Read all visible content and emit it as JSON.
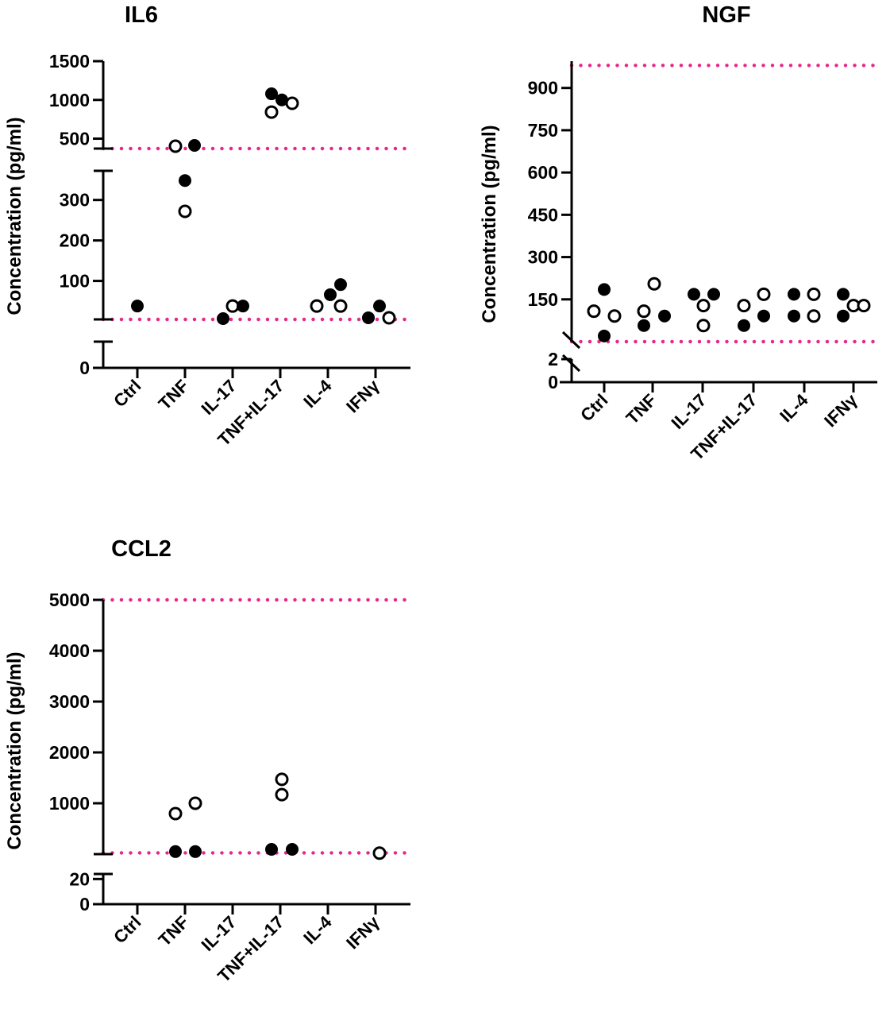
{
  "colors": {
    "reference_line": "#e8278c",
    "marker": "#000000"
  },
  "chart_data": [
    {
      "type": "scatter",
      "title": "IL6",
      "ylabel": "Concentration (pg/ml)",
      "xlabel": "",
      "categories": [
        "Ctrl",
        "TNF",
        "IL-17",
        "TNF+IL-17",
        "IL-4",
        "IFNγ"
      ],
      "y_axis_segments": [
        {
          "range": [
            0,
            5
          ],
          "ticks": [
            0
          ]
        },
        {
          "range": [
            5,
            372
          ],
          "ticks": [
            100,
            200,
            300
          ]
        },
        {
          "range": [
            372,
            1500
          ],
          "ticks": [
            500,
            1000,
            1500
          ]
        }
      ],
      "reference_lines": [
        5,
        372
      ],
      "points": [
        {
          "category": "Ctrl",
          "value": 38,
          "marker": "filled"
        },
        {
          "category": "TNF",
          "value": 403,
          "marker": "open"
        },
        {
          "category": "TNF",
          "value": 413,
          "marker": "filled"
        },
        {
          "category": "TNF",
          "value": 348,
          "marker": "filled"
        },
        {
          "category": "TNF",
          "value": 272,
          "marker": "open"
        },
        {
          "category": "IL-17",
          "value": 7,
          "marker": "filled"
        },
        {
          "category": "IL-17",
          "value": 38,
          "marker": "open"
        },
        {
          "category": "IL-17",
          "value": 38,
          "marker": "filled"
        },
        {
          "category": "TNF+IL-17",
          "value": 1079,
          "marker": "filled"
        },
        {
          "category": "TNF+IL-17",
          "value": 1000,
          "marker": "filled"
        },
        {
          "category": "TNF+IL-17",
          "value": 843,
          "marker": "open"
        },
        {
          "category": "TNF+IL-17",
          "value": 956,
          "marker": "open"
        },
        {
          "category": "IL-4",
          "value": 38,
          "marker": "open"
        },
        {
          "category": "IL-4",
          "value": 66,
          "marker": "filled"
        },
        {
          "category": "IL-4",
          "value": 91,
          "marker": "filled"
        },
        {
          "category": "IL-4",
          "value": 38,
          "marker": "open"
        },
        {
          "category": "IFNγ",
          "value": 9,
          "marker": "filled"
        },
        {
          "category": "IFNγ",
          "value": 38,
          "marker": "filled"
        },
        {
          "category": "IFNγ",
          "value": 9,
          "marker": "open"
        }
      ]
    },
    {
      "type": "scatter",
      "title": "NGF",
      "ylabel": "Concentration (pg/ml)",
      "xlabel": "",
      "categories": [
        "Ctrl",
        "TNF",
        "IL-17",
        "TNF+IL-17",
        "IL-4",
        "IFNγ"
      ],
      "y_axis_segments": [
        {
          "range": [
            0,
            2
          ],
          "ticks": [
            0,
            2
          ]
        },
        {
          "range": [
            0,
            995
          ],
          "ticks": [
            150,
            300,
            450,
            600,
            750,
            900
          ]
        }
      ],
      "reference_lines": [
        0,
        980
      ],
      "points": [
        {
          "category": "Ctrl",
          "value": 108,
          "marker": "open"
        },
        {
          "category": "Ctrl",
          "value": 185,
          "marker": "filled"
        },
        {
          "category": "Ctrl",
          "value": 91,
          "marker": "open"
        },
        {
          "category": "Ctrl",
          "value": 20,
          "marker": "filled"
        },
        {
          "category": "TNF",
          "value": 108,
          "marker": "open"
        },
        {
          "category": "TNF",
          "value": 205,
          "marker": "open"
        },
        {
          "category": "TNF",
          "value": 57,
          "marker": "filled"
        },
        {
          "category": "TNF",
          "value": 91,
          "marker": "filled"
        },
        {
          "category": "IL-17",
          "value": 168,
          "marker": "filled"
        },
        {
          "category": "IL-17",
          "value": 168,
          "marker": "filled"
        },
        {
          "category": "IL-17",
          "value": 128,
          "marker": "open"
        },
        {
          "category": "IL-17",
          "value": 57,
          "marker": "open"
        },
        {
          "category": "TNF+IL-17",
          "value": 128,
          "marker": "open"
        },
        {
          "category": "TNF+IL-17",
          "value": 168,
          "marker": "open"
        },
        {
          "category": "TNF+IL-17",
          "value": 57,
          "marker": "filled"
        },
        {
          "category": "TNF+IL-17",
          "value": 91,
          "marker": "filled"
        },
        {
          "category": "IL-4",
          "value": 168,
          "marker": "filled"
        },
        {
          "category": "IL-4",
          "value": 168,
          "marker": "open"
        },
        {
          "category": "IL-4",
          "value": 91,
          "marker": "filled"
        },
        {
          "category": "IL-4",
          "value": 91,
          "marker": "open"
        },
        {
          "category": "IFNγ",
          "value": 168,
          "marker": "filled"
        },
        {
          "category": "IFNγ",
          "value": 128,
          "marker": "open"
        },
        {
          "category": "IFNγ",
          "value": 128,
          "marker": "open"
        },
        {
          "category": "IFNγ",
          "value": 91,
          "marker": "filled"
        }
      ]
    },
    {
      "type": "scatter",
      "title": "CCL2",
      "ylabel": "Concentration (pg/ml)",
      "xlabel": "",
      "categories": [
        "Ctrl",
        "TNF",
        "IL-17",
        "TNF+IL-17",
        "IL-4",
        "IFNγ"
      ],
      "y_axis_segments": [
        {
          "range": [
            0,
            24
          ],
          "ticks": [
            0,
            20
          ]
        },
        {
          "range": [
            0,
            5000
          ],
          "ticks": [
            1000,
            2000,
            3000,
            4000,
            5000
          ]
        }
      ],
      "reference_lines": [
        24,
        5000
      ],
      "points": [
        {
          "category": "TNF",
          "value": 797,
          "marker": "open"
        },
        {
          "category": "TNF",
          "value": 1000,
          "marker": "open"
        },
        {
          "category": "TNF",
          "value": 50,
          "marker": "filled"
        },
        {
          "category": "TNF",
          "value": 50,
          "marker": "filled"
        },
        {
          "category": "TNF+IL-17",
          "value": 1470,
          "marker": "open"
        },
        {
          "category": "TNF+IL-17",
          "value": 1170,
          "marker": "open"
        },
        {
          "category": "TNF+IL-17",
          "value": 94,
          "marker": "filled"
        },
        {
          "category": "TNF+IL-17",
          "value": 94,
          "marker": "filled"
        },
        {
          "category": "IFNγ",
          "value": 20,
          "marker": "open"
        }
      ]
    }
  ]
}
